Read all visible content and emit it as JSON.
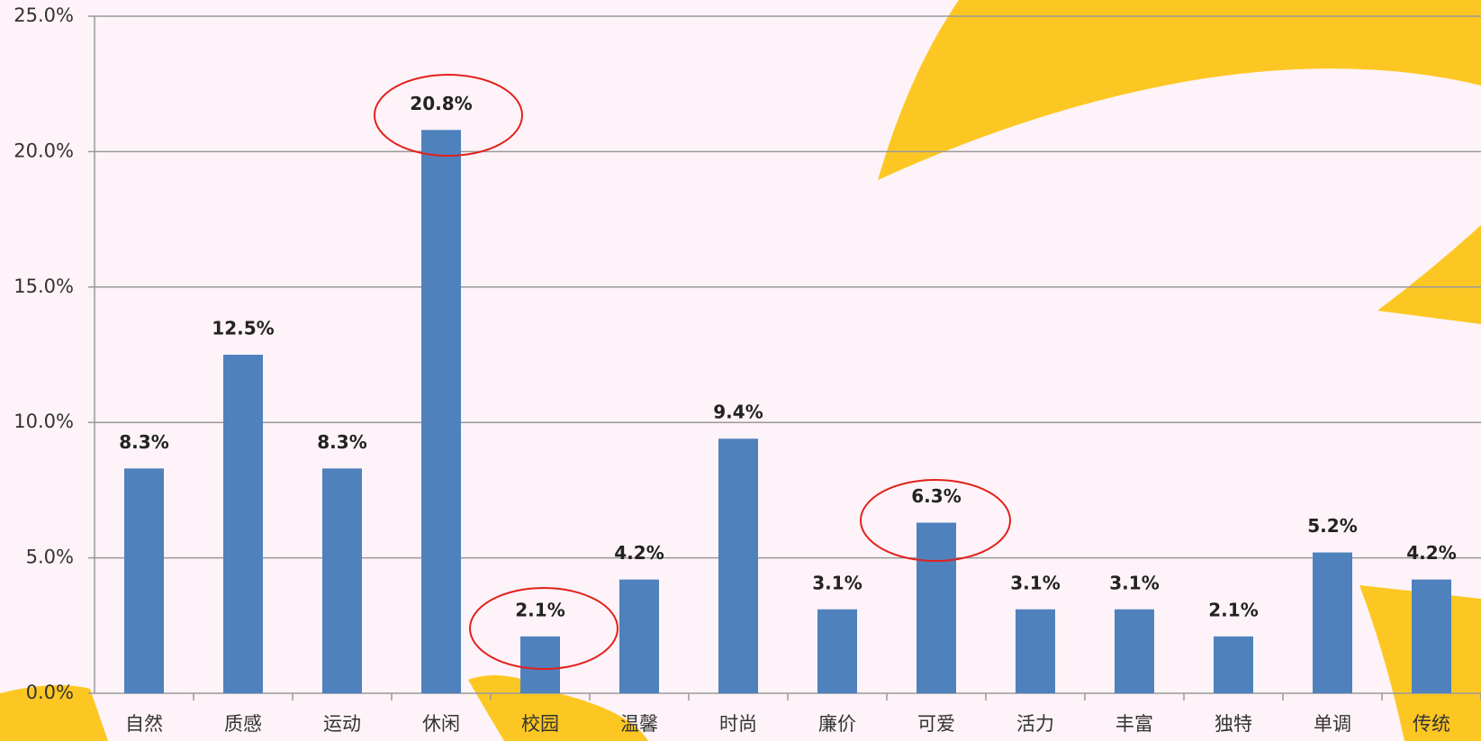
{
  "chart_data": {
    "type": "bar",
    "categories": [
      "自然",
      "质感",
      "运动",
      "休闲",
      "校园",
      "温馨",
      "时尚",
      "廉价",
      "可爱",
      "活力",
      "丰富",
      "独特",
      "单调",
      "传统"
    ],
    "values": [
      8.3,
      12.5,
      8.3,
      20.8,
      2.1,
      4.2,
      9.4,
      3.1,
      6.3,
      3.1,
      3.1,
      2.1,
      5.2,
      4.2
    ],
    "value_labels": [
      "8.3%",
      "12.5%",
      "8.3%",
      "20.8%",
      "2.1%",
      "4.2%",
      "9.4%",
      "3.1%",
      "6.3%",
      "3.1%",
      "3.1%",
      "2.1%",
      "5.2%",
      "4.2%"
    ],
    "color": "#4f81bd",
    "ylim": [
      0,
      25
    ],
    "yticks": [
      {
        "value": 0,
        "label": "0.0%"
      },
      {
        "value": 5,
        "label": "5.0%"
      },
      {
        "value": 10,
        "label": "10.0%"
      },
      {
        "value": 15,
        "label": "15.0%"
      },
      {
        "value": 20,
        "label": "20.0%"
      },
      {
        "value": 25,
        "label": "25.0%"
      }
    ],
    "grid": true
  }
}
